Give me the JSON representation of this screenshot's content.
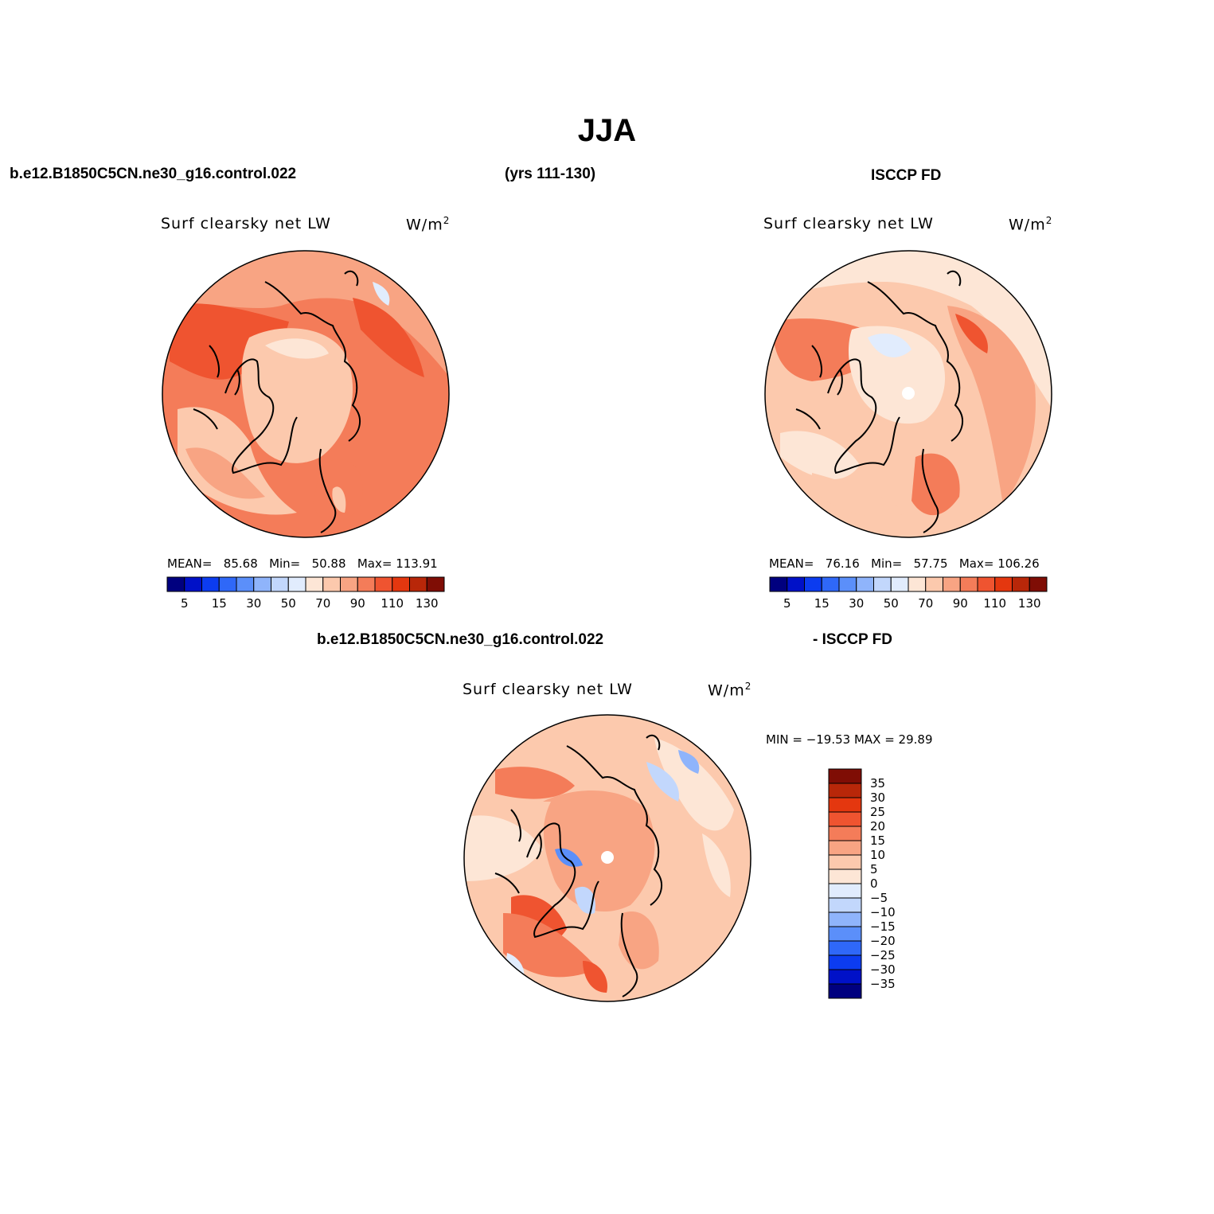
{
  "season_title": "JJA",
  "top_row": {
    "case_name": "b.e12.B1850C5CN.ne30_g16.control.022",
    "years": "(yrs 111-130)",
    "obs_name": "ISCCP FD"
  },
  "panels": [
    {
      "id": "model",
      "title": "Surf clearsky net LW",
      "units": "W/m",
      "units_sup": "2",
      "stats": {
        "mean_label": "MEAN=",
        "mean": "85.68",
        "min_label": "Min=",
        "min": "50.88",
        "max_label": "Max=",
        "max": "113.91"
      }
    },
    {
      "id": "obs",
      "title": "Surf clearsky net LW",
      "units": "W/m",
      "units_sup": "2",
      "stats": {
        "mean_label": "MEAN=",
        "mean": "76.16",
        "min_label": "Min=",
        "min": "57.75",
        "max_label": "Max=",
        "max": "106.26"
      }
    },
    {
      "id": "diff",
      "title": "Surf clearsky net LW",
      "units": "W/m",
      "units_sup": "2",
      "stats_line": "MIN = −19.53 MAX =   29.89"
    }
  ],
  "diff_header": {
    "case_name": "b.e12.B1850C5CN.ne30_g16.control.022",
    "obs_name": "- ISCCP FD"
  },
  "abs_colorbar": {
    "colors": [
      "#00007f",
      "#0011c8",
      "#0c3cf0",
      "#2f68f8",
      "#5b8ffa",
      "#8fb4fb",
      "#c2d7fc",
      "#e1ecfd",
      "#fde6d6",
      "#fcc9ad",
      "#f8a483",
      "#f47c59",
      "#ef5430",
      "#e4370f",
      "#b82709",
      "#7f0d05"
    ],
    "labels": [
      "5",
      "15",
      "30",
      "50",
      "70",
      "90",
      "110",
      "130"
    ]
  },
  "diff_colorbar": {
    "colors": [
      "#7f0d05",
      "#b82709",
      "#e4370f",
      "#ef5430",
      "#f47c59",
      "#f8a483",
      "#fcc9ad",
      "#fde6d6",
      "#e1ecfd",
      "#c2d7fc",
      "#8fb4fb",
      "#5b8ffa",
      "#2f68f8",
      "#0c3cf0",
      "#0011c8",
      "#00007f"
    ],
    "labels": [
      "35",
      "30",
      "25",
      "20",
      "15",
      "10",
      "5",
      "0",
      "−5",
      "−10",
      "−15",
      "−20",
      "−25",
      "−30",
      "−35"
    ]
  }
}
